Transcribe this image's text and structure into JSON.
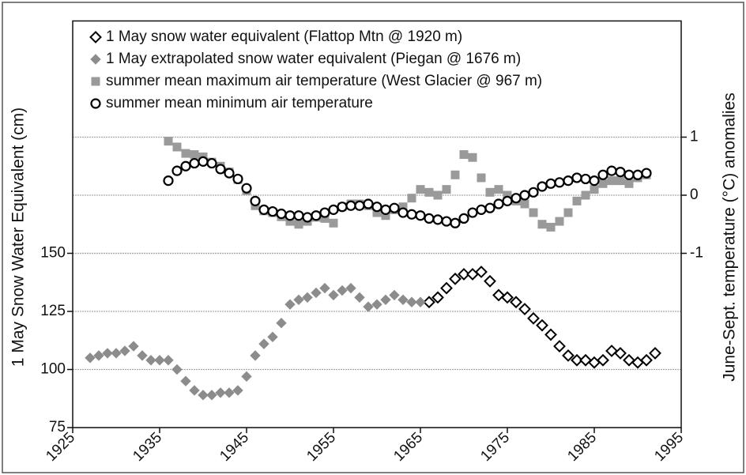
{
  "chart_data": {
    "type": "scatter",
    "ylabel": "1 May Snow Water Equivalent (cm)",
    "y2label": "June-Sept. temperature (°C) anomalies",
    "xlim": [
      1925,
      1995
    ],
    "xticks": [
      1925,
      1935,
      1945,
      1955,
      1965,
      1975,
      1985,
      1995
    ],
    "ylim": [
      75,
      250
    ],
    "yticks": [
      75,
      100,
      125,
      150
    ],
    "y2lim": [
      -4,
      3
    ],
    "y2ticks": [
      -1,
      0,
      1
    ],
    "grid": true,
    "legend": "upper left",
    "series": [
      {
        "name": "1 May snow water equivalent (Flattop Mtn @ 1920 m)",
        "color": "#000000",
        "marker": "diamond-open",
        "x": [
          1966,
          1967,
          1968,
          1969,
          1970,
          1971,
          1972,
          1973,
          1974,
          1975,
          1976,
          1977,
          1978,
          1979,
          1980,
          1981,
          1982,
          1983,
          1984,
          1985,
          1986,
          1987,
          1988,
          1989,
          1990,
          1991,
          1992
        ],
        "values": [
          129,
          131,
          135,
          139,
          141,
          141,
          142,
          138,
          132,
          131,
          129,
          126,
          122,
          119,
          115,
          110,
          106,
          104,
          104,
          103,
          104,
          108,
          107,
          104,
          103,
          104,
          107
        ]
      },
      {
        "name": "1 May extrapolated snow water equivalent (Piegan @ 1676 m)",
        "color": "#8c8c8c",
        "marker": "diamond",
        "x": [
          1927,
          1928,
          1929,
          1930,
          1931,
          1932,
          1933,
          1934,
          1935,
          1936,
          1937,
          1938,
          1939,
          1940,
          1941,
          1942,
          1943,
          1944,
          1945,
          1946,
          1947,
          1948,
          1949,
          1950,
          1951,
          1952,
          1953,
          1954,
          1955,
          1956,
          1957,
          1958,
          1959,
          1960,
          1961,
          1962,
          1963,
          1964,
          1965
        ],
        "values": [
          105,
          106,
          107,
          107,
          108,
          110,
          106,
          104,
          104,
          104,
          100,
          95,
          91,
          89,
          89,
          90,
          90,
          91,
          97,
          106,
          111,
          114,
          120,
          128,
          130,
          131,
          133,
          135,
          132,
          134,
          135,
          131,
          127,
          128,
          130,
          132,
          130,
          129,
          129
        ]
      },
      {
        "name": "summer mean maximum air temperature (West Glacier @ 967 m)",
        "color": "#9a9a9a",
        "marker": "square",
        "axis": "y2",
        "x": [
          1936,
          1937,
          1938,
          1939,
          1940,
          1941,
          1942,
          1943,
          1944,
          1945,
          1946,
          1947,
          1948,
          1949,
          1950,
          1951,
          1952,
          1953,
          1954,
          1955,
          1956,
          1957,
          1958,
          1959,
          1960,
          1961,
          1962,
          1963,
          1964,
          1965,
          1966,
          1967,
          1968,
          1969,
          1970,
          1971,
          1972,
          1973,
          1974,
          1975,
          1976,
          1977,
          1978,
          1979,
          1980,
          1981,
          1982,
          1983,
          1984,
          1985,
          1986,
          1987,
          1988,
          1989,
          1990,
          1991
        ],
        "values": [
          0.93,
          0.83,
          0.72,
          0.7,
          0.66,
          0.57,
          0.5,
          0.4,
          0.27,
          0.08,
          -0.18,
          -0.27,
          -0.3,
          -0.37,
          -0.45,
          -0.5,
          -0.45,
          -0.38,
          -0.4,
          -0.48,
          -0.2,
          -0.15,
          -0.15,
          -0.18,
          -0.3,
          -0.35,
          -0.25,
          -0.2,
          -0.05,
          0.1,
          0.05,
          0,
          0.1,
          0.35,
          0.7,
          0.65,
          0.3,
          0.05,
          0.1,
          0,
          -0.1,
          -0.15,
          -0.3,
          -0.5,
          -0.55,
          -0.45,
          -0.3,
          -0.1,
          0,
          0.1,
          0.2,
          0.25,
          0.25,
          0.2,
          0.3,
          0.35
        ]
      },
      {
        "name": "summer mean minimum air temperature",
        "color": "#000000",
        "marker": "circle-open",
        "axis": "y2",
        "x": [
          1936,
          1937,
          1938,
          1939,
          1940,
          1941,
          1942,
          1943,
          1944,
          1945,
          1946,
          1947,
          1948,
          1949,
          1950,
          1951,
          1952,
          1953,
          1954,
          1955,
          1956,
          1957,
          1958,
          1959,
          1960,
          1961,
          1962,
          1963,
          1964,
          1965,
          1966,
          1967,
          1968,
          1969,
          1970,
          1971,
          1972,
          1973,
          1974,
          1975,
          1976,
          1977,
          1978,
          1979,
          1980,
          1981,
          1982,
          1983,
          1984,
          1985,
          1986,
          1987,
          1988,
          1989,
          1990,
          1991
        ],
        "values": [
          0.25,
          0.42,
          0.5,
          0.55,
          0.58,
          0.55,
          0.45,
          0.38,
          0.28,
          0.12,
          -0.1,
          -0.25,
          -0.28,
          -0.32,
          -0.35,
          -0.35,
          -0.38,
          -0.35,
          -0.3,
          -0.25,
          -0.2,
          -0.18,
          -0.18,
          -0.15,
          -0.2,
          -0.25,
          -0.22,
          -0.3,
          -0.33,
          -0.35,
          -0.4,
          -0.42,
          -0.45,
          -0.48,
          -0.4,
          -0.3,
          -0.25,
          -0.22,
          -0.15,
          -0.1,
          -0.05,
          0,
          0.05,
          0.15,
          0.2,
          0.22,
          0.25,
          0.3,
          0.28,
          0.25,
          0.35,
          0.42,
          0.4,
          0.35,
          0.35,
          0.38
        ]
      }
    ]
  }
}
